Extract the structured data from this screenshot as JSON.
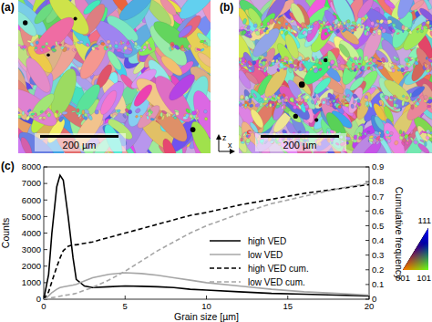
{
  "figure": {
    "panel_labels": [
      "(a)",
      "(b)",
      "(c)"
    ],
    "scale_bars": [
      "200 µm",
      "200 µm"
    ],
    "direction_labels": [
      "z",
      "x"
    ],
    "ipf_key": {
      "top": "111",
      "left": "001",
      "right": "101"
    }
  },
  "chart_data": {
    "type": "line",
    "x_label": "Grain size [µm]",
    "y_label": "Counts",
    "y2_label": "Cumulative frequency",
    "x": [
      0,
      0.3,
      0.5,
      0.8,
      1,
      1.2,
      1.5,
      1.8,
      2,
      2.5,
      3,
      4,
      5,
      6,
      7,
      8,
      9,
      10,
      12,
      14,
      16,
      18,
      20
    ],
    "series": [
      {
        "name": "high VED",
        "color": "#000000",
        "line_style": "solid",
        "values": [
          0,
          1500,
          4000,
          6800,
          7500,
          7200,
          5000,
          2500,
          1200,
          800,
          700,
          750,
          800,
          780,
          750,
          700,
          600,
          550,
          450,
          350,
          300,
          250,
          200
        ]
      },
      {
        "name": "low VED",
        "color": "#a6a6a6",
        "line_style": "solid",
        "values": [
          0,
          200,
          400,
          600,
          700,
          750,
          800,
          850,
          900,
          1100,
          1300,
          1500,
          1600,
          1550,
          1450,
          1300,
          1150,
          1000,
          800,
          600,
          450,
          350,
          250
        ]
      },
      {
        "name": "high VED cum.",
        "color": "#000000",
        "line_style": "dashed",
        "axis": "y2",
        "values": [
          0,
          0.05,
          0.12,
          0.22,
          0.28,
          0.33,
          0.36,
          0.37,
          0.37,
          0.38,
          0.39,
          0.42,
          0.45,
          0.48,
          0.51,
          0.54,
          0.57,
          0.59,
          0.64,
          0.68,
          0.72,
          0.75,
          0.78
        ]
      },
      {
        "name": "low VED cum.",
        "color": "#a6a6a6",
        "line_style": "dashed",
        "axis": "y2",
        "values": [
          0,
          0.005,
          0.01,
          0.015,
          0.02,
          0.025,
          0.03,
          0.035,
          0.04,
          0.06,
          0.08,
          0.13,
          0.19,
          0.26,
          0.33,
          0.39,
          0.45,
          0.5,
          0.58,
          0.65,
          0.7,
          0.75,
          0.79
        ]
      }
    ],
    "xlim": [
      0,
      20
    ],
    "xticks": [
      0,
      5,
      10,
      15,
      20
    ],
    "ylim": [
      0,
      8000
    ],
    "yticks": [
      0,
      1000,
      2000,
      3000,
      4000,
      5000,
      6000,
      7000,
      8000
    ],
    "y2lim": [
      0,
      0.9
    ],
    "y2ticks": [
      0,
      0.1,
      0.2,
      0.3,
      0.4,
      0.5,
      0.6,
      0.7,
      0.8,
      0.9
    ],
    "legend": "right",
    "grid": false
  }
}
